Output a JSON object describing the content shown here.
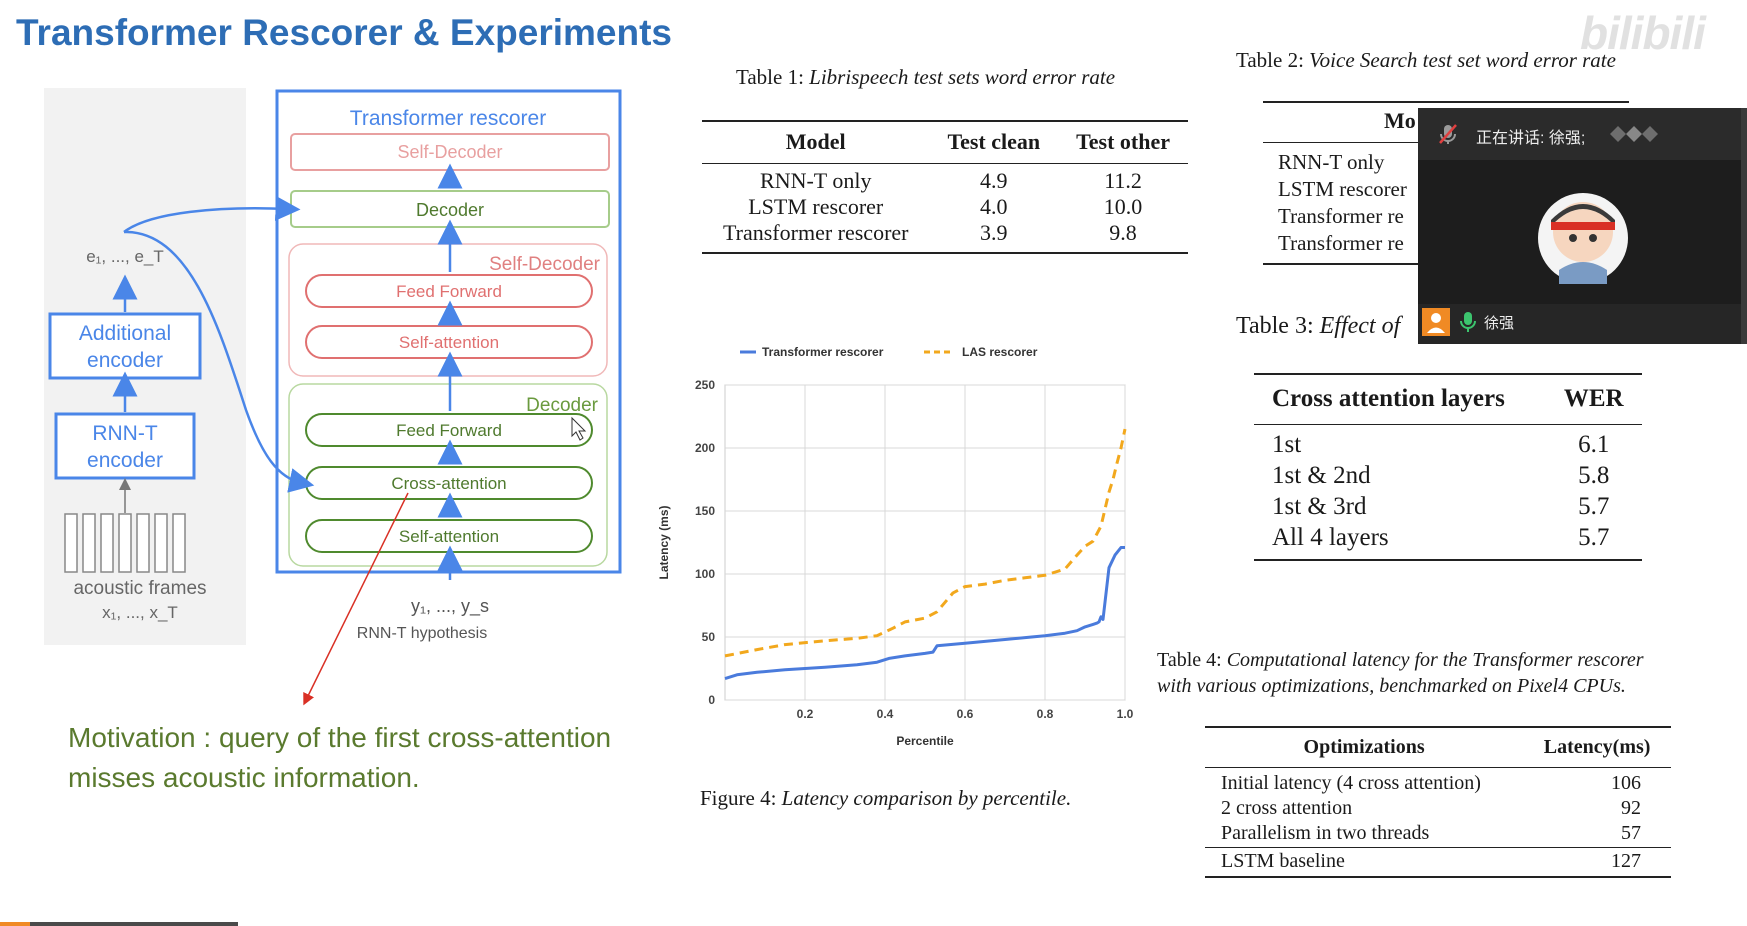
{
  "slide": {
    "title": "Transformer Rescorer & Experiments",
    "motivation": "Motivation : query of the first cross-attention misses acoustic information."
  },
  "diagram": {
    "rescorer_title": "Transformer rescorer",
    "self_decoder_top": "Self-Decoder",
    "decoder_block": "Decoder",
    "self_decoder_group_label": "Self-Decoder",
    "feed_forward_1": "Feed Forward",
    "self_attention_1": "Self-attention",
    "decoder_group_label": "Decoder",
    "feed_forward_2": "Feed Forward",
    "cross_attention": "Cross-attention",
    "self_attention_2": "Self-attention",
    "encoder_output_label": "e₁, ..., e_T",
    "additional_encoder": [
      "Additional",
      "encoder"
    ],
    "rnnt_encoder": [
      "RNN-T",
      "encoder"
    ],
    "acoustic_frames": "acoustic frames",
    "acoustic_frames_seq": "x₁, ..., x_T",
    "hypothesis_seq": "y₁, ..., y_s",
    "hypothesis_label": "RNN-T hypothesis"
  },
  "table1": {
    "caption_prefix": "Table 1: ",
    "caption_italic": "Librispeech test sets word error rate",
    "headers": [
      "Model",
      "Test clean",
      "Test other"
    ],
    "rows": [
      [
        "RNN-T only",
        "4.9",
        "11.2"
      ],
      [
        "LSTM rescorer",
        "4.0",
        "10.0"
      ],
      [
        "Transformer rescorer",
        "3.9",
        "9.8"
      ]
    ]
  },
  "table2": {
    "caption_prefix": "Table 2: ",
    "caption_italic": "Voice Search test set word error rate",
    "header_partial": "Mo",
    "rows_partial": [
      "RNN-T only",
      "LSTM rescorer",
      "Transformer re",
      "Transformer re"
    ]
  },
  "table3": {
    "caption_prefix": "Table 3: ",
    "caption_italic": "Effect of",
    "headers": [
      "Cross attention layers",
      "WER"
    ],
    "rows": [
      [
        "1st",
        "6.1"
      ],
      [
        "1st & 2nd",
        "5.8"
      ],
      [
        "1st & 3rd",
        "5.7"
      ],
      [
        "All 4 layers",
        "5.7"
      ]
    ]
  },
  "table4": {
    "caption_prefix": "Table 4: ",
    "caption_line1_italic": "Computational latency for the Transformer rescorer",
    "caption_line2_italic": "with various optimizations, benchmarked on Pixel4 CPUs.",
    "headers": [
      "Optimizations",
      "Latency(ms)"
    ],
    "rows": [
      [
        "Initial latency (4 cross attention)",
        "106"
      ],
      [
        "2 cross attention",
        "92"
      ],
      [
        "Parallelism in two threads",
        "57"
      ]
    ],
    "baseline_row": [
      "LSTM baseline",
      "127"
    ]
  },
  "figure4": {
    "caption_prefix": "Figure 4: ",
    "caption_italic": "Latency comparison by percentile."
  },
  "chart_data": {
    "type": "line",
    "title": "",
    "xlabel": "Percentile",
    "ylabel": "Latency (ms)",
    "xlim": [
      0,
      1.0
    ],
    "ylim": [
      0,
      250
    ],
    "xticks": [
      "0.2",
      "0.4",
      "0.6",
      "0.8",
      "1.0"
    ],
    "yticks": [
      "0",
      "50",
      "100",
      "150",
      "200",
      "250"
    ],
    "grid": true,
    "legend_position": "top",
    "series": [
      {
        "name": "Transformer rescorer",
        "color": "#4a7bdc",
        "style": "solid",
        "x": [
          0.0,
          0.03,
          0.08,
          0.15,
          0.25,
          0.33,
          0.38,
          0.41,
          0.45,
          0.5,
          0.52,
          0.53,
          0.6,
          0.7,
          0.8,
          0.85,
          0.88,
          0.9,
          0.92,
          0.93,
          0.935,
          0.94,
          0.945,
          0.96,
          0.975,
          0.99,
          1.0
        ],
        "y": [
          17,
          20,
          22,
          24,
          26,
          28,
          30,
          33,
          35,
          37,
          38,
          43,
          45,
          48,
          51,
          53,
          55,
          58,
          60,
          61,
          62,
          66,
          64,
          105,
          115,
          121,
          121
        ]
      },
      {
        "name": "LAS rescorer",
        "color": "#f2a81d",
        "style": "dashed",
        "x": [
          0.0,
          0.08,
          0.15,
          0.25,
          0.33,
          0.38,
          0.42,
          0.45,
          0.5,
          0.53,
          0.57,
          0.6,
          0.65,
          0.7,
          0.75,
          0.8,
          0.85,
          0.88,
          0.9,
          0.92,
          0.94,
          0.96,
          0.97,
          0.98,
          0.99,
          1.0
        ],
        "y": [
          35,
          40,
          44,
          47,
          49,
          51,
          57,
          62,
          65,
          70,
          85,
          90,
          92,
          95,
          97,
          99,
          104,
          115,
          122,
          126,
          138,
          165,
          175,
          188,
          200,
          215
        ]
      }
    ]
  },
  "video_overlay": {
    "speaking_label": "正在讲话: 徐强;",
    "user_name": "徐强"
  },
  "watermark": "bilibili"
}
